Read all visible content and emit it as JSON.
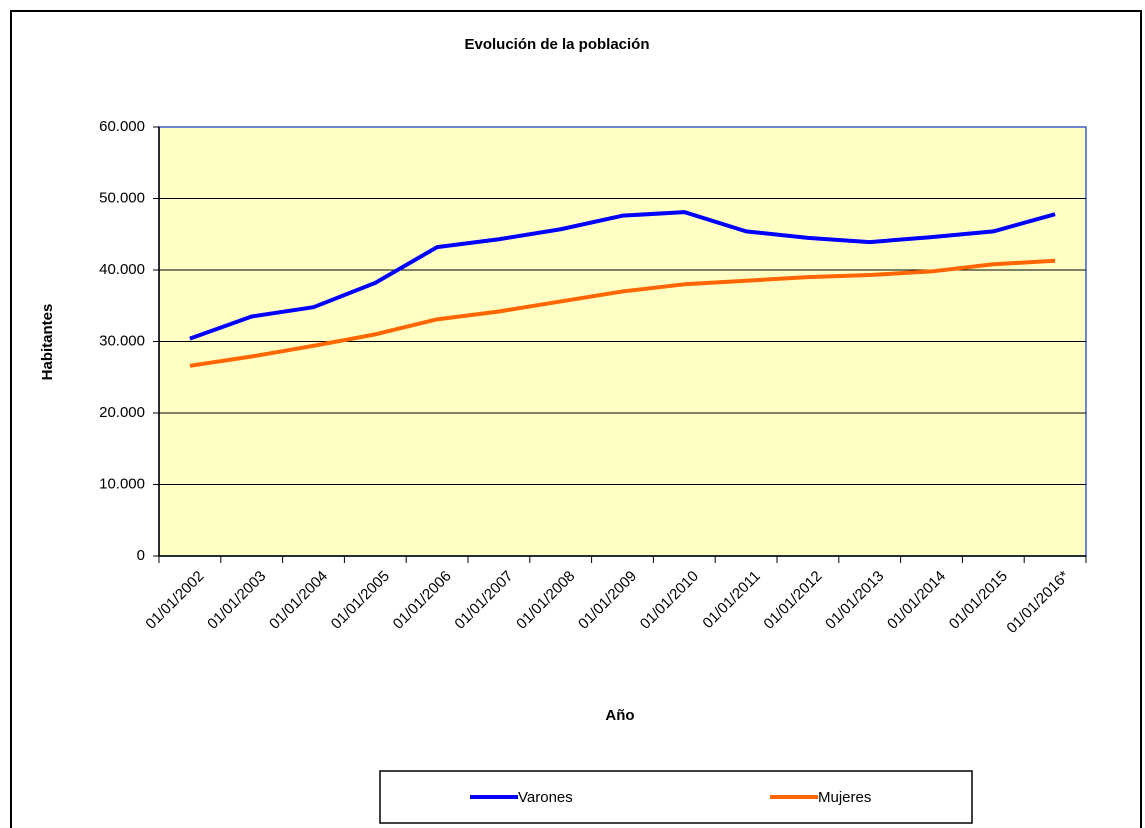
{
  "chart_data": {
    "type": "line",
    "title": "Evolución de la población",
    "x_label": "Año",
    "y_label": "Habitantes",
    "categories": [
      "01/01/2002",
      "01/01/2003",
      "01/01/2004",
      "01/01/2005",
      "01/01/2006",
      "01/01/2007",
      "01/01/2008",
      "01/01/2009",
      "01/01/2010",
      "01/01/2011",
      "01/01/2012",
      "01/01/2013",
      "01/01/2014",
      "01/01/2015",
      "01/01/2016*"
    ],
    "series": [
      {
        "name": "Varones",
        "color": "#0000ff",
        "values": [
          30400,
          33500,
          34800,
          38200,
          43200,
          44300,
          45700,
          47600,
          48100,
          45400,
          44500,
          43900,
          44600,
          45400,
          47800
        ]
      },
      {
        "name": "Mujeres",
        "color": "#ff6600",
        "values": [
          26600,
          27900,
          29400,
          31000,
          33100,
          34200,
          35600,
          37000,
          38000,
          38500,
          39000,
          39300,
          39800,
          40800,
          41300
        ]
      }
    ],
    "ylim": [
      0,
      60000
    ],
    "yticks": [
      0,
      {
        "value": 10000,
        "label": "10.000"
      },
      {
        "value": 20000,
        "label": "20.000"
      },
      {
        "value": 30000,
        "label": "30.000"
      },
      {
        "value": 40000,
        "label": "40.000"
      },
      {
        "value": 50000,
        "label": "50.000"
      },
      {
        "value": 60000,
        "label": "60.000"
      }
    ],
    "grid": true,
    "legend": "bottom"
  }
}
